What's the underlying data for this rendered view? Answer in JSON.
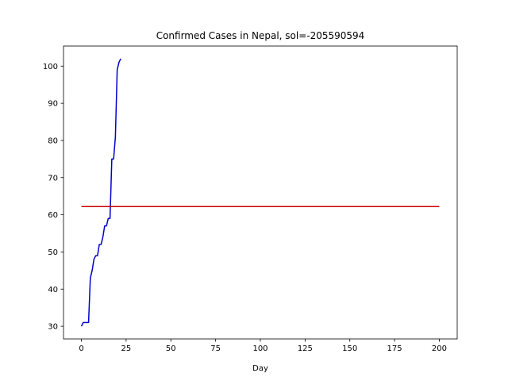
{
  "chart_data": {
    "type": "line",
    "title": "Confirmed Cases in Nepal, sol=-205590594",
    "xlabel": "Day",
    "ylabel": "",
    "xlim": [
      -10,
      210
    ],
    "ylim": [
      26.6,
      105.4
    ],
    "xticks": [
      0,
      25,
      50,
      75,
      100,
      125,
      150,
      175,
      200
    ],
    "yticks": [
      30,
      40,
      50,
      60,
      70,
      80,
      90,
      100
    ],
    "grid": false,
    "legend": "none",
    "series": [
      {
        "color": "#0000cc",
        "x": [
          0,
          1,
          2,
          3,
          4,
          5,
          6,
          7,
          8,
          9,
          10,
          11,
          12,
          13,
          14,
          15,
          16,
          17,
          18,
          19,
          20,
          21,
          22
        ],
        "y": [
          30,
          31,
          31,
          31,
          31,
          43,
          45,
          48,
          49,
          49,
          52,
          52,
          54,
          57,
          57,
          59,
          59,
          75,
          75,
          81,
          99,
          101,
          102
        ]
      },
      {
        "color": "#cc0000",
        "x": [
          0,
          200
        ],
        "y": [
          62.2,
          62.2
        ]
      }
    ]
  }
}
